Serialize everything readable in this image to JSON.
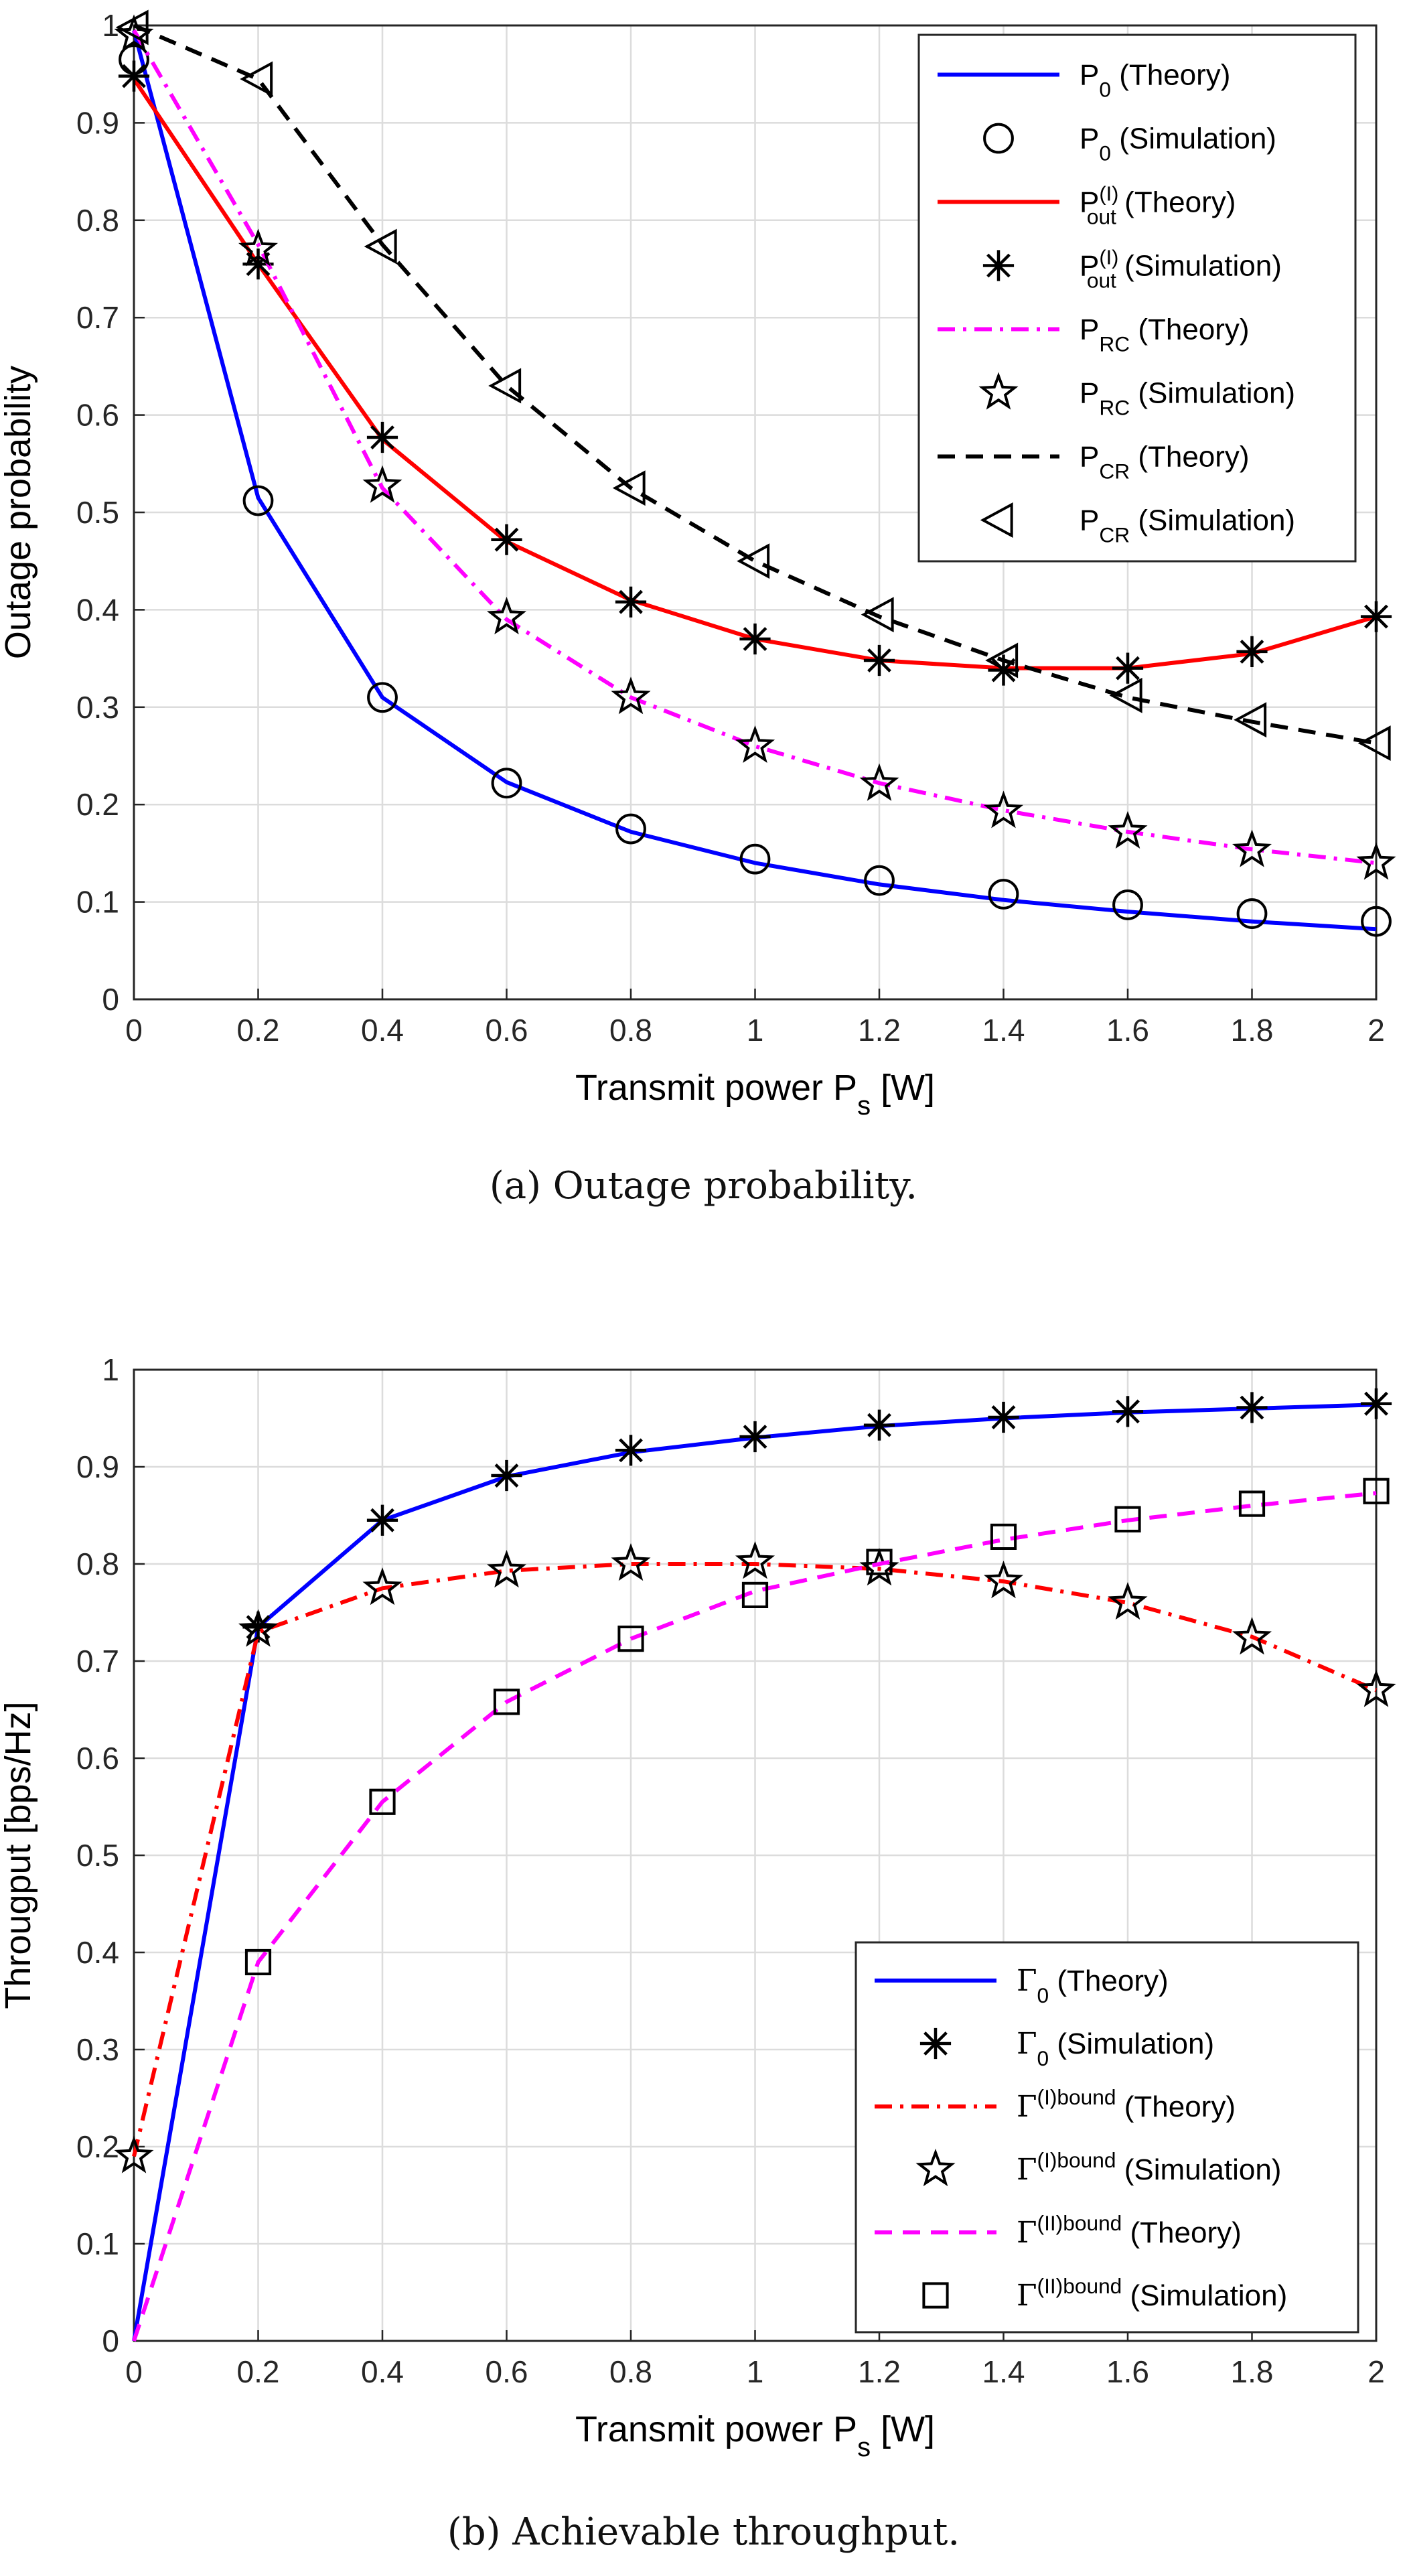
{
  "chart_data": [
    {
      "type": "line",
      "caption": "(a)  Outage probability.",
      "xlabel": "Transmit power P",
      "xlabel_sub": "s",
      "xlabel_suffix": " [W]",
      "ylabel": "Outage probability",
      "xlim": [
        0,
        2
      ],
      "ylim": [
        0,
        1
      ],
      "xticks": [
        0,
        0.2,
        0.4,
        0.6,
        0.8,
        1,
        1.2,
        1.4,
        1.6,
        1.8,
        2
      ],
      "xtick_labels": [
        "0",
        "0.2",
        "0.4",
        "0.6",
        "0.8",
        "1",
        "1.2",
        "1.4",
        "1.6",
        "1.8",
        "2"
      ],
      "yticks": [
        0,
        0.1,
        0.2,
        0.3,
        0.4,
        0.5,
        0.6,
        0.7,
        0.8,
        0.9,
        1
      ],
      "ytick_labels": [
        "0",
        "0.1",
        "0.2",
        "0.3",
        "0.4",
        "0.5",
        "0.6",
        "0.7",
        "0.8",
        "0.9",
        "1"
      ],
      "grid": true,
      "legend_position": "top-right",
      "series": [
        {
          "name": "P0 (Theory)",
          "label": [
            {
              "t": "P"
            },
            {
              "t": "0",
              "sub": true
            },
            {
              "t": " (Theory)"
            }
          ],
          "kind": "line",
          "color": "#0000ff",
          "dash": "solid",
          "x": [
            0,
            0.2,
            0.4,
            0.6,
            0.8,
            1,
            1.2,
            1.4,
            1.6,
            1.8,
            2
          ],
          "y": [
            0.995,
            0.515,
            0.31,
            0.223,
            0.172,
            0.14,
            0.118,
            0.102,
            0.09,
            0.08,
            0.072
          ]
        },
        {
          "name": "P0 (Simulation)",
          "label": [
            {
              "t": "P"
            },
            {
              "t": "0",
              "sub": true
            },
            {
              "t": " (Simulation)"
            }
          ],
          "kind": "marker",
          "marker": "circle",
          "x": [
            0,
            0.2,
            0.4,
            0.6,
            0.8,
            1,
            1.2,
            1.4,
            1.6,
            1.8,
            2
          ],
          "y": [
            0.965,
            0.512,
            0.31,
            0.222,
            0.175,
            0.144,
            0.122,
            0.108,
            0.097,
            0.088,
            0.08
          ]
        },
        {
          "name": "Pout(I) (Theory)",
          "label": [
            {
              "t": "P"
            },
            {
              "t": "out",
              "sub": true,
              "sup": "(I)"
            },
            {
              "t": " (Theory)"
            }
          ],
          "kind": "line",
          "color": "#ff0000",
          "dash": "solid",
          "x": [
            0,
            0.2,
            0.4,
            0.6,
            0.8,
            1,
            1.2,
            1.4,
            1.6,
            1.8,
            2
          ],
          "y": [
            0.945,
            0.755,
            0.575,
            0.47,
            0.41,
            0.37,
            0.348,
            0.34,
            0.34,
            0.355,
            0.393
          ]
        },
        {
          "name": "Pout(I) (Simulation)",
          "label": [
            {
              "t": "P"
            },
            {
              "t": "out",
              "sub": true,
              "sup": "(I)"
            },
            {
              "t": " (Simulation)"
            }
          ],
          "kind": "marker",
          "marker": "asterisk",
          "x": [
            0,
            0.2,
            0.4,
            0.6,
            0.8,
            1,
            1.2,
            1.4,
            1.6,
            1.8,
            2
          ],
          "y": [
            0.948,
            0.755,
            0.577,
            0.472,
            0.408,
            0.37,
            0.348,
            0.338,
            0.34,
            0.357,
            0.393
          ]
        },
        {
          "name": "PRC (Theory)",
          "label": [
            {
              "t": "P"
            },
            {
              "t": "RC",
              "sub": true
            },
            {
              "t": " (Theory)"
            }
          ],
          "kind": "line",
          "color": "#ff00ff",
          "dash": "dashdot",
          "x": [
            0,
            0.2,
            0.4,
            0.6,
            0.8,
            1,
            1.2,
            1.4,
            1.6,
            1.8,
            2
          ],
          "y": [
            0.995,
            0.775,
            0.525,
            0.39,
            0.31,
            0.26,
            0.222,
            0.194,
            0.172,
            0.154,
            0.14
          ]
        },
        {
          "name": "PRC (Simulation)",
          "label": [
            {
              "t": "P"
            },
            {
              "t": "RC",
              "sub": true
            },
            {
              "t": " (Simulation)"
            }
          ],
          "kind": "marker",
          "marker": "star",
          "x": [
            0,
            0.2,
            0.4,
            0.6,
            0.8,
            1,
            1.2,
            1.4,
            1.6,
            1.8,
            2
          ],
          "y": [
            0.99,
            0.77,
            0.527,
            0.392,
            0.31,
            0.26,
            0.221,
            0.193,
            0.172,
            0.153,
            0.14
          ]
        },
        {
          "name": "PCR (Theory)",
          "label": [
            {
              "t": "P"
            },
            {
              "t": "CR",
              "sub": true
            },
            {
              "t": " (Theory)"
            }
          ],
          "kind": "line",
          "color": "#000000",
          "dash": "dashed",
          "x": [
            0,
            0.2,
            0.4,
            0.6,
            0.8,
            1,
            1.2,
            1.4,
            1.6,
            1.8,
            2
          ],
          "y": [
            1.0,
            0.945,
            0.775,
            0.63,
            0.525,
            0.45,
            0.393,
            0.348,
            0.31,
            0.285,
            0.263
          ]
        },
        {
          "name": "PCR (Simulation)",
          "label": [
            {
              "t": "P"
            },
            {
              "t": "CR",
              "sub": true
            },
            {
              "t": " (Simulation)"
            }
          ],
          "kind": "marker",
          "marker": "triangle-left",
          "x": [
            0,
            0.2,
            0.4,
            0.6,
            0.8,
            1,
            1.2,
            1.4,
            1.6,
            1.8,
            2
          ],
          "y": [
            0.998,
            0.945,
            0.773,
            0.63,
            0.525,
            0.45,
            0.395,
            0.348,
            0.312,
            0.287,
            0.263
          ]
        }
      ]
    },
    {
      "type": "line",
      "caption": "(b)  Achievable throughput.",
      "xlabel": "Transmit power P",
      "xlabel_sub": "s",
      "xlabel_suffix": " [W]",
      "ylabel": "Througput [bps/Hz]",
      "xlim": [
        0,
        2
      ],
      "ylim": [
        0,
        1
      ],
      "xticks": [
        0,
        0.2,
        0.4,
        0.6,
        0.8,
        1,
        1.2,
        1.4,
        1.6,
        1.8,
        2
      ],
      "xtick_labels": [
        "0",
        "0.2",
        "0.4",
        "0.6",
        "0.8",
        "1",
        "1.2",
        "1.4",
        "1.6",
        "1.8",
        "2"
      ],
      "yticks": [
        0,
        0.1,
        0.2,
        0.3,
        0.4,
        0.5,
        0.6,
        0.7,
        0.8,
        0.9,
        1
      ],
      "ytick_labels": [
        "0",
        "0.1",
        "0.2",
        "0.3",
        "0.4",
        "0.5",
        "0.6",
        "0.7",
        "0.8",
        "0.9",
        "1"
      ],
      "grid": true,
      "legend_position": "bottom-right",
      "series": [
        {
          "name": "Γ0 (Theory)",
          "label": [
            {
              "t": "Γ",
              "serif": true
            },
            {
              "t": "0",
              "sub": true
            },
            {
              "t": " (Theory)"
            }
          ],
          "kind": "line",
          "color": "#0000ff",
          "dash": "solid",
          "x": [
            0,
            0.2,
            0.4,
            0.6,
            0.8,
            1,
            1.2,
            1.4,
            1.6,
            1.8,
            2
          ],
          "y": [
            0,
            0.735,
            0.845,
            0.89,
            0.915,
            0.93,
            0.942,
            0.95,
            0.956,
            0.96,
            0.964
          ]
        },
        {
          "name": "Γ0 (Simulation)",
          "label": [
            {
              "t": "Γ",
              "serif": true
            },
            {
              "t": "0",
              "sub": true
            },
            {
              "t": " (Simulation)"
            }
          ],
          "kind": "marker",
          "marker": "asterisk",
          "x": [
            0.2,
            0.4,
            0.6,
            0.8,
            1,
            1.2,
            1.4,
            1.6,
            1.8,
            2
          ],
          "y": [
            0.735,
            0.845,
            0.891,
            0.917,
            0.931,
            0.943,
            0.951,
            0.957,
            0.961,
            0.965
          ]
        },
        {
          "name": "Γ(I)bound (Theory)",
          "label": [
            {
              "t": "Γ",
              "serif": true
            },
            {
              "t": "(I)bound",
              "sup": true
            },
            {
              "t": " (Theory)"
            }
          ],
          "kind": "line",
          "color": "#ff0000",
          "dash": "dashdot",
          "x": [
            0,
            0.2,
            0.4,
            0.6,
            0.8,
            1,
            1.2,
            1.4,
            1.6,
            1.8,
            2
          ],
          "y": [
            0.19,
            0.73,
            0.775,
            0.793,
            0.8,
            0.8,
            0.795,
            0.782,
            0.76,
            0.725,
            0.67
          ]
        },
        {
          "name": "Γ(I)bound (Simulation)",
          "label": [
            {
              "t": "Γ",
              "serif": true
            },
            {
              "t": "(I)bound",
              "sup": true
            },
            {
              "t": " (Simulation)"
            }
          ],
          "kind": "marker",
          "marker": "star",
          "x": [
            0,
            0.2,
            0.4,
            0.6,
            0.8,
            1,
            1.2,
            1.4,
            1.6,
            1.8,
            2
          ],
          "y": [
            0.19,
            0.732,
            0.775,
            0.793,
            0.8,
            0.802,
            0.795,
            0.782,
            0.76,
            0.724,
            0.67
          ]
        },
        {
          "name": "Γ(II)bound (Theory)",
          "label": [
            {
              "t": "Γ",
              "serif": true
            },
            {
              "t": "(II)bound",
              "sup": true
            },
            {
              "t": " (Theory)"
            }
          ],
          "kind": "line",
          "color": "#ff00ff",
          "dash": "dashed",
          "x": [
            0,
            0.2,
            0.4,
            0.6,
            0.8,
            1,
            1.2,
            1.4,
            1.6,
            1.8,
            2
          ],
          "y": [
            0,
            0.39,
            0.555,
            0.658,
            0.723,
            0.772,
            0.8,
            0.825,
            0.845,
            0.86,
            0.873
          ]
        },
        {
          "name": "Γ(II)bound (Simulation)",
          "label": [
            {
              "t": "Γ",
              "serif": true
            },
            {
              "t": "(II)bound",
              "sup": true
            },
            {
              "t": " (Simulation)"
            }
          ],
          "kind": "marker",
          "marker": "square",
          "x": [
            0.2,
            0.4,
            0.6,
            0.8,
            1,
            1.2,
            1.4,
            1.6,
            1.8,
            2
          ],
          "y": [
            0.39,
            0.555,
            0.658,
            0.723,
            0.768,
            0.802,
            0.828,
            0.846,
            0.862,
            0.875
          ]
        }
      ]
    }
  ]
}
